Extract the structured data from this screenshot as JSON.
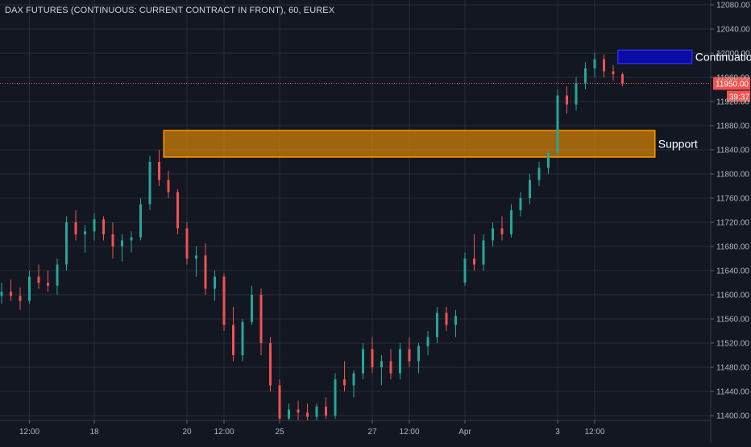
{
  "header": {
    "symbol_title": "DAX FUTURES (CONTINUOUS: CURRENT CONTRACT IN FRONT), 60, EUREX"
  },
  "chart_data": {
    "type": "candlestick",
    "title": "DAX FUTURES (CONTINUOUS: CURRENT CONTRACT IN FRONT), 60, EUREX",
    "y_ticks": [
      "12080.00",
      "12040.00",
      "12000.00",
      "11960.00",
      "11920.00",
      "11880.00",
      "11840.00",
      "11800.00",
      "11760.00",
      "11720.00",
      "11680.00",
      "11640.00",
      "11600.00",
      "11560.00",
      "11520.00",
      "11480.00",
      "11440.00",
      "11400.00"
    ],
    "ylim": [
      11392,
      12088
    ],
    "x_ticks": [
      {
        "label": "12:00",
        "bar": 3
      },
      {
        "label": "18",
        "bar": 10
      },
      {
        "label": "20",
        "bar": 20
      },
      {
        "label": "12:00",
        "bar": 24
      },
      {
        "label": "25",
        "bar": 30
      },
      {
        "label": "27",
        "bar": 40
      },
      {
        "label": "12:00",
        "bar": 44
      },
      {
        "label": "Apr",
        "bar": 50
      },
      {
        "label": "3",
        "bar": 60
      },
      {
        "label": "12:00",
        "bar": 64
      }
    ],
    "bar_count": 68,
    "last_price": "11950.00",
    "countdown": "39:37",
    "grid": true,
    "candles": [
      [
        11598,
        11620,
        11585,
        11605
      ],
      [
        11605,
        11625,
        11590,
        11598
      ],
      [
        11598,
        11612,
        11575,
        11590
      ],
      [
        11590,
        11640,
        11585,
        11630
      ],
      [
        11630,
        11650,
        11610,
        11620
      ],
      [
        11620,
        11640,
        11605,
        11615
      ],
      [
        11615,
        11660,
        11600,
        11650
      ],
      [
        11650,
        11730,
        11640,
        11720
      ],
      [
        11720,
        11740,
        11690,
        11700
      ],
      [
        11700,
        11715,
        11670,
        11705
      ],
      [
        11705,
        11735,
        11690,
        11725
      ],
      [
        11725,
        11730,
        11690,
        11700
      ],
      [
        11700,
        11720,
        11660,
        11680
      ],
      [
        11680,
        11700,
        11655,
        11690
      ],
      [
        11690,
        11705,
        11670,
        11695
      ],
      [
        11695,
        11760,
        11690,
        11750
      ],
      [
        11750,
        11830,
        11740,
        11820
      ],
      [
        11820,
        11840,
        11780,
        11790
      ],
      [
        11790,
        11805,
        11760,
        11770
      ],
      [
        11770,
        11775,
        11700,
        11710
      ],
      [
        11710,
        11720,
        11650,
        11660
      ],
      [
        11660,
        11680,
        11630,
        11665
      ],
      [
        11665,
        11685,
        11600,
        11610
      ],
      [
        11610,
        11640,
        11590,
        11630
      ],
      [
        11630,
        11635,
        11540,
        11550
      ],
      [
        11550,
        11580,
        11490,
        11500
      ],
      [
        11500,
        11560,
        11490,
        11555
      ],
      [
        11555,
        11615,
        11550,
        11600
      ],
      [
        11600,
        11610,
        11500,
        11520
      ],
      [
        11520,
        11530,
        11440,
        11450
      ],
      [
        11450,
        11460,
        11390,
        11395
      ],
      [
        11395,
        11420,
        11392,
        11410
      ],
      [
        11410,
        11425,
        11392,
        11405
      ],
      [
        11405,
        11420,
        11392,
        11398
      ],
      [
        11398,
        11420,
        11392,
        11415
      ],
      [
        11415,
        11430,
        11395,
        11400
      ],
      [
        11400,
        11470,
        11395,
        11460
      ],
      [
        11460,
        11490,
        11440,
        11450
      ],
      [
        11450,
        11475,
        11430,
        11470
      ],
      [
        11470,
        11520,
        11460,
        11510
      ],
      [
        11510,
        11530,
        11470,
        11480
      ],
      [
        11480,
        11500,
        11450,
        11490
      ],
      [
        11490,
        11510,
        11460,
        11470
      ],
      [
        11470,
        11520,
        11460,
        11510
      ],
      [
        11510,
        11530,
        11480,
        11490
      ],
      [
        11490,
        11520,
        11470,
        11515
      ],
      [
        11515,
        11540,
        11500,
        11530
      ],
      [
        11530,
        11580,
        11520,
        11570
      ],
      [
        11570,
        11580,
        11540,
        11550
      ],
      [
        11550,
        11575,
        11530,
        11565
      ],
      [
        11620,
        11670,
        11615,
        11660
      ],
      [
        11660,
        11700,
        11640,
        11650
      ],
      [
        11650,
        11700,
        11640,
        11690
      ],
      [
        11690,
        11720,
        11680,
        11710
      ],
      [
        11710,
        11730,
        11690,
        11700
      ],
      [
        11700,
        11750,
        11695,
        11740
      ],
      [
        11740,
        11770,
        11730,
        11760
      ],
      [
        11760,
        11800,
        11750,
        11790
      ],
      [
        11790,
        11820,
        11780,
        11810
      ],
      [
        11810,
        11840,
        11800,
        11835
      ],
      [
        11835,
        11940,
        11830,
        11930
      ],
      [
        11930,
        11945,
        11900,
        11915
      ],
      [
        11915,
        11960,
        11905,
        11950
      ],
      [
        11950,
        11985,
        11940,
        11975
      ],
      [
        11975,
        12000,
        11960,
        11990
      ],
      [
        11990,
        11998,
        11960,
        11970
      ],
      [
        11970,
        11980,
        11955,
        11965
      ],
      [
        11965,
        11968,
        11945,
        11950
      ]
    ],
    "zones": [
      {
        "label": "Support",
        "bar_start": 18,
        "bar_end": 71,
        "y_low": 11828,
        "y_high": 11872,
        "fill": "#ff9800",
        "fill_opacity": 0.6,
        "stroke": "#ff9800"
      },
      {
        "label": "Continuation",
        "bar_start": 67,
        "bar_end": 75,
        "y_low": 11983,
        "y_high": 12005,
        "fill": "#0b0bb0",
        "fill_opacity": 0.95,
        "stroke": "#2d2de0"
      }
    ],
    "colors": {
      "background": "#131722",
      "grid": "#2a2e39",
      "axis_text": "#b2b5be",
      "up": "#26a69a",
      "down": "#ef5350",
      "price_line": "#ef5350",
      "price_label_bg": "#ef5350",
      "annotation_text": "#ffffff"
    }
  }
}
